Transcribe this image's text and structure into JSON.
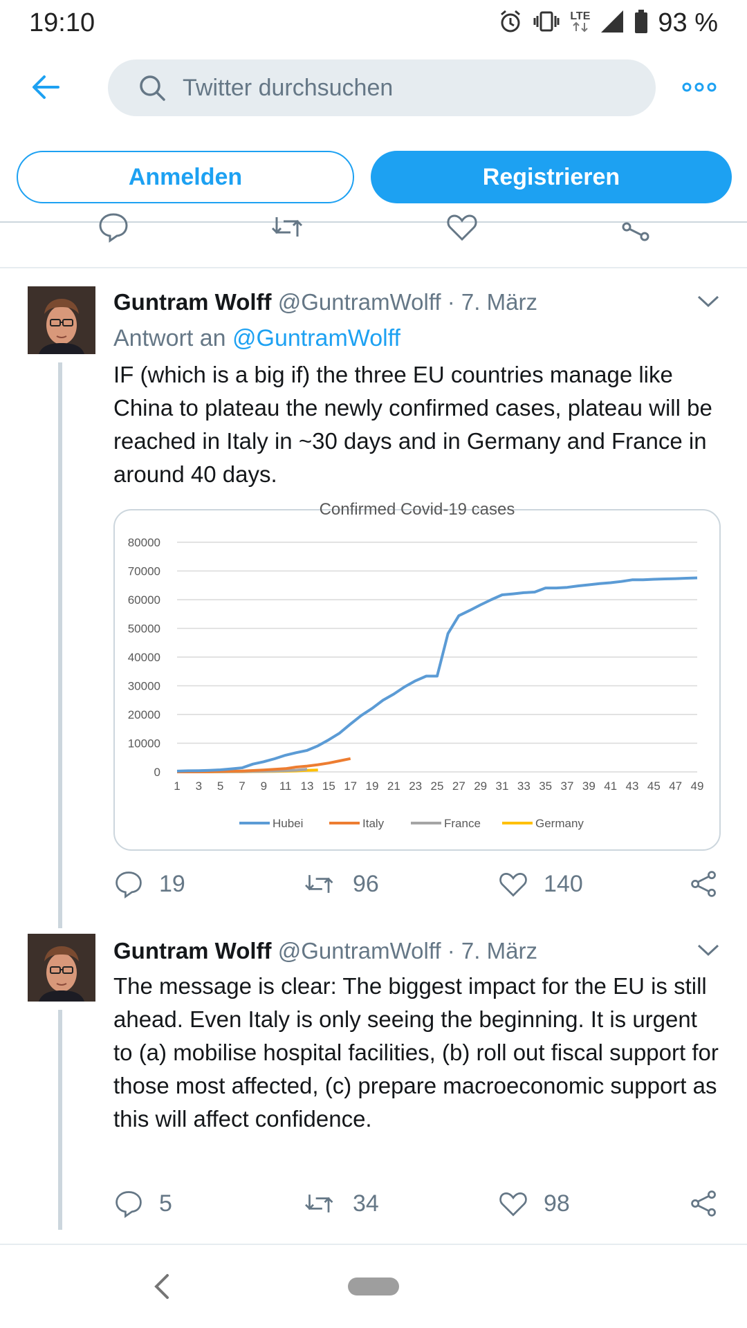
{
  "status_bar": {
    "time": "19:10",
    "network": "LTE",
    "battery": "93 %",
    "icons": [
      "alarm-icon",
      "vibrate-icon",
      "lte-icon",
      "signal-icon",
      "battery-icon"
    ]
  },
  "top_bar": {
    "search_placeholder": "Twitter durchsuchen",
    "icons": [
      "back-arrow-icon",
      "search-icon",
      "more-icon"
    ]
  },
  "auth": {
    "login_label": "Anmelden",
    "register_label": "Registrieren"
  },
  "colors": {
    "accent": "#1da1f2",
    "text": "#14171a",
    "muted": "#657786",
    "hubei": "#5b9bd5",
    "italy": "#ed7d31",
    "france": "#a5a5a5",
    "germany": "#ffc000"
  },
  "tweets": [
    {
      "name": "Guntram Wolff",
      "handle": "@GuntramWolff",
      "separator": "·",
      "date": "7. März",
      "reply_prefix": "Antwort an",
      "reply_handle": "@GuntramWolff",
      "text": "IF (which is a big if) the three EU countries manage like China to plateau the newly confirmed cases, plateau will be reached in Italy in ~30 days and in Germany and France in around 40 days.",
      "replies": "19",
      "retweets": "96",
      "likes": "140"
    },
    {
      "name": "Guntram Wolff",
      "handle": "@GuntramWolff",
      "separator": "·",
      "date": "7. März",
      "text": "The message is clear: The biggest impact for the EU is still ahead. Even Italy is only seeing the beginning. It is urgent to (a) mobilise hospital facilities, (b) roll out fiscal support for those most affected, (c) prepare macroeconomic support as this will affect confidence.",
      "replies": "5",
      "retweets": "34",
      "likes": "98"
    }
  ],
  "chart_data": {
    "type": "line",
    "title": "Confirmed Covid-19 cases",
    "xlabel": "",
    "ylabel": "",
    "xlim": [
      1,
      49
    ],
    "ylim": [
      0,
      80000
    ],
    "x_ticks": [
      "1",
      "3",
      "5",
      "7",
      "9",
      "11",
      "13",
      "15",
      "17",
      "19",
      "21",
      "23",
      "25",
      "27",
      "29",
      "31",
      "33",
      "35",
      "37",
      "39",
      "41",
      "43",
      "45",
      "47",
      "49"
    ],
    "y_ticks": [
      "80000",
      "70000",
      "60000",
      "50000",
      "40000",
      "30000",
      "20000",
      "10000",
      "0"
    ],
    "grid": true,
    "legend_position": "bottom",
    "series": [
      {
        "name": "Hubei",
        "color": "#5b9bd5",
        "points": [
          [
            1,
            270
          ],
          [
            2,
            375
          ],
          [
            3,
            444
          ],
          [
            4,
            549
          ],
          [
            5,
            729
          ],
          [
            6,
            1052
          ],
          [
            7,
            1423
          ],
          [
            8,
            2714
          ],
          [
            9,
            3554
          ],
          [
            10,
            4586
          ],
          [
            11,
            5806
          ],
          [
            12,
            6700
          ],
          [
            13,
            7500
          ],
          [
            14,
            9074
          ],
          [
            15,
            11177
          ],
          [
            16,
            13522
          ],
          [
            17,
            16678
          ],
          [
            18,
            19665
          ],
          [
            19,
            22112
          ],
          [
            20,
            24953
          ],
          [
            21,
            27100
          ],
          [
            22,
            29631
          ],
          [
            23,
            31728
          ],
          [
            24,
            33366
          ],
          [
            25,
            33366
          ],
          [
            26,
            48206
          ],
          [
            27,
            54406
          ],
          [
            28,
            56249
          ],
          [
            29,
            58182
          ],
          [
            30,
            59989
          ],
          [
            31,
            61682
          ],
          [
            32,
            62031
          ],
          [
            33,
            62442
          ],
          [
            34,
            62662
          ],
          [
            35,
            64084
          ],
          [
            36,
            64084
          ],
          [
            37,
            64287
          ],
          [
            38,
            64786
          ],
          [
            39,
            65187
          ],
          [
            40,
            65596
          ],
          [
            41,
            65914
          ],
          [
            42,
            66337
          ],
          [
            43,
            66907
          ],
          [
            44,
            66907
          ],
          [
            45,
            67103
          ],
          [
            46,
            67217
          ],
          [
            47,
            67332
          ],
          [
            48,
            67466
          ],
          [
            49,
            67592
          ]
        ]
      },
      {
        "name": "Italy",
        "color": "#ed7d31",
        "points": [
          [
            1,
            3
          ],
          [
            2,
            3
          ],
          [
            3,
            20
          ],
          [
            4,
            79
          ],
          [
            5,
            157
          ],
          [
            6,
            229
          ],
          [
            7,
            323
          ],
          [
            8,
            470
          ],
          [
            9,
            655
          ],
          [
            10,
            889
          ],
          [
            11,
            1128
          ],
          [
            12,
            1694
          ],
          [
            13,
            2036
          ],
          [
            14,
            2502
          ],
          [
            15,
            3089
          ],
          [
            16,
            3858
          ],
          [
            17,
            4636
          ]
        ]
      },
      {
        "name": "France",
        "color": "#a5a5a5",
        "points": [
          [
            1,
            12
          ],
          [
            2,
            12
          ],
          [
            3,
            18
          ],
          [
            4,
            38
          ],
          [
            5,
            57
          ],
          [
            6,
            100
          ],
          [
            7,
            130
          ],
          [
            8,
            191
          ],
          [
            9,
            212
          ],
          [
            10,
            285
          ],
          [
            11,
            423
          ],
          [
            12,
            613
          ],
          [
            13,
            949
          ]
        ]
      },
      {
        "name": "Germany",
        "color": "#ffc000",
        "points": [
          [
            1,
            16
          ],
          [
            2,
            16
          ],
          [
            3,
            18
          ],
          [
            4,
            21
          ],
          [
            5,
            26
          ],
          [
            6,
            53
          ],
          [
            7,
            66
          ],
          [
            8,
            117
          ],
          [
            9,
            150
          ],
          [
            10,
            188
          ],
          [
            11,
            240
          ],
          [
            12,
            349
          ],
          [
            13,
            534
          ],
          [
            14,
            684
          ]
        ]
      }
    ]
  }
}
